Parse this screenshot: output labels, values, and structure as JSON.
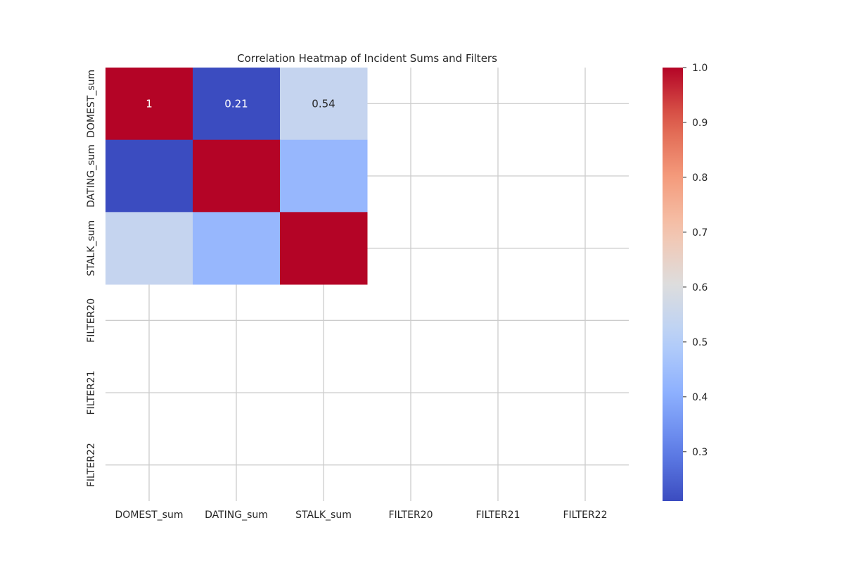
{
  "chart_data": {
    "type": "heatmap",
    "title": "Correlation Heatmap of Incident Sums and Filters",
    "x_categories": [
      "DOMEST_sum",
      "DATING_sum",
      "STALK_sum",
      "FILTER20",
      "FILTER21",
      "FILTER22"
    ],
    "y_categories": [
      "DOMEST_sum",
      "DATING_sum",
      "STALK_sum",
      "FILTER20",
      "FILTER21",
      "FILTER22"
    ],
    "cells": [
      {
        "row": 0,
        "col": 0,
        "value": 1.0,
        "label": "1"
      },
      {
        "row": 0,
        "col": 1,
        "value": 0.21,
        "label": "0.21"
      },
      {
        "row": 0,
        "col": 2,
        "value": 0.54,
        "label": "0.54"
      },
      {
        "row": 1,
        "col": 0,
        "value": 0.21,
        "label": ""
      },
      {
        "row": 1,
        "col": 1,
        "value": 1.0,
        "label": ""
      },
      {
        "row": 1,
        "col": 2,
        "value": 0.43,
        "label": ""
      },
      {
        "row": 2,
        "col": 0,
        "value": 0.54,
        "label": ""
      },
      {
        "row": 2,
        "col": 1,
        "value": 0.43,
        "label": ""
      },
      {
        "row": 2,
        "col": 2,
        "value": 1.0,
        "label": ""
      }
    ],
    "colormap": "coolwarm",
    "colorbar": {
      "vmin": 0.21,
      "vmax": 1.0,
      "ticks": [
        0.3,
        0.4,
        0.5,
        0.6,
        0.7,
        0.8,
        0.9,
        1.0
      ],
      "tick_labels": [
        "0.3",
        "0.4",
        "0.5",
        "0.6",
        "0.7",
        "0.8",
        "0.9",
        "1.0"
      ]
    },
    "grid": true,
    "colors": {
      "grid": "#cccccc",
      "text_dark": "#262626",
      "text_light": "#ffffff"
    }
  }
}
